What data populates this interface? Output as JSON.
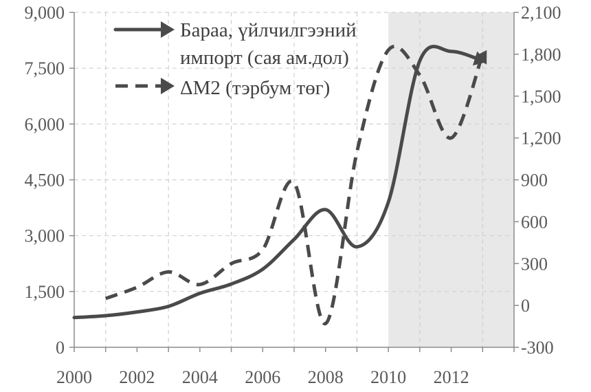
{
  "chart_data": {
    "type": "line",
    "x_ticks": [
      "2000",
      "2002",
      "2004",
      "2006",
      "2008",
      "2010",
      "2012"
    ],
    "xlim": [
      2000,
      2014
    ],
    "ylim_left": [
      0,
      9000
    ],
    "ylim_right": [
      -300,
      2100
    ],
    "y_ticks_left": [
      "0",
      "1,500",
      "3,000",
      "4,500",
      "6,000",
      "7,500",
      "9,000"
    ],
    "y_ticks_right": [
      "-300",
      "0",
      "300",
      "600",
      "900",
      "1,200",
      "1,500",
      "1,800",
      "2,100"
    ],
    "grid": true,
    "legend_position": "top-left",
    "shaded_region": [
      2010,
      2014
    ],
    "series": [
      {
        "name": "Бараа, үйлчилгээний импорт (сая ам.дол)",
        "legend_lines": [
          "Бараа, үйлчилгээний",
          "импорт (сая ам.дол)"
        ],
        "axis": "left",
        "style": "solid",
        "x": [
          2000,
          2001,
          2002,
          2003,
          2004,
          2005,
          2006,
          2007,
          2008,
          2009,
          2010,
          2011,
          2012,
          2013
        ],
        "y": [
          800,
          850,
          950,
          1100,
          1450,
          1700,
          2100,
          2900,
          3700,
          2700,
          3900,
          7700,
          7950,
          7700
        ]
      },
      {
        "name": "ΔM2 (тэрбум төг)",
        "legend_lines": [
          "ΔM2 (тэрбум төг)"
        ],
        "axis": "right",
        "style": "dashed",
        "x": [
          2001,
          2002,
          2003,
          2004,
          2005,
          2006,
          2007,
          2008,
          2009,
          2010,
          2011,
          2012,
          2013
        ],
        "y": [
          50,
          130,
          240,
          150,
          300,
          400,
          880,
          -130,
          1100,
          1830,
          1650,
          1200,
          1800
        ]
      }
    ]
  }
}
